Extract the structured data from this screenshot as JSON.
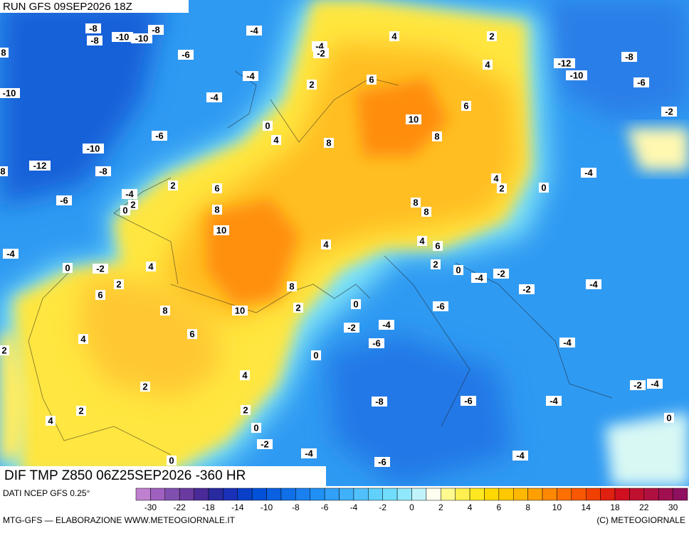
{
  "header": {
    "run": "RUN GFS 09SEP2026 18Z"
  },
  "map": {
    "caption": "DIF TMP Z850 06Z25SEP2026 -360 HR",
    "contour_labels": [
      "-8",
      "-8",
      "-10",
      "-10",
      "-8",
      "-4",
      "4",
      "2",
      "8",
      "-6",
      "-4",
      "-2",
      "-12",
      "-8",
      "4",
      "-10",
      "-6",
      "-10",
      "-4",
      "2",
      "6",
      "-4",
      "6",
      "-2",
      "10",
      "0",
      "-6",
      "8",
      "4",
      "8",
      "-10",
      "-12",
      "-8",
      "8",
      "-4",
      "4",
      "2",
      "0",
      "2",
      "6",
      "-4",
      "-6",
      "0",
      "2",
      "8",
      "8",
      "8",
      "10",
      "4",
      "4",
      "6",
      "-4",
      "2",
      "0",
      "-2",
      "4",
      "0",
      "-4",
      "-2",
      "6",
      "2",
      "8",
      "-2",
      "-4",
      "8",
      "10",
      "2",
      "0",
      "-6",
      "-2",
      "-4",
      "6",
      "4",
      "-6",
      "-4",
      "2",
      "0",
      "4",
      "2",
      "-2",
      "-4",
      "-8",
      "-6",
      "-4",
      "2",
      "2",
      "4",
      "0",
      "0",
      "-2",
      "-4",
      "-4",
      "0",
      "-6"
    ]
  },
  "legend": {
    "source": "DATI NCEP GFS 0.25°",
    "colors": [
      "#c080d0",
      "#a060c0",
      "#8050b0",
      "#6a3aa0",
      "#4a2a98",
      "#2a2aa0",
      "#1a30b8",
      "#0a40c8",
      "#0050d8",
      "#0a60e0",
      "#1070e8",
      "#1a80f0",
      "#2090f5",
      "#30a0f8",
      "#40b0fa",
      "#50c0fb",
      "#60d0fc",
      "#70ddfc",
      "#90e8fc",
      "#c0f4fa",
      "#fffff0",
      "#fffa90",
      "#fff050",
      "#ffe820",
      "#ffd800",
      "#ffc800",
      "#ffb800",
      "#ffa000",
      "#ff8800",
      "#ff7000",
      "#f85800",
      "#f04000",
      "#e02010",
      "#d01020",
      "#c01030",
      "#b01040",
      "#a01050",
      "#901060"
    ],
    "tick_labels": [
      "-30",
      "-22",
      "-18",
      "-14",
      "-10",
      "-8",
      "-6",
      "-4",
      "-2",
      "0",
      "2",
      "4",
      "6",
      "8",
      "10",
      "14",
      "18",
      "22",
      "30"
    ]
  },
  "footer": {
    "left": "MTG-GFS — ELABORAZIONE WWW.METEOGIORNALE.IT",
    "right": "(C) METEOGIORNALE"
  }
}
